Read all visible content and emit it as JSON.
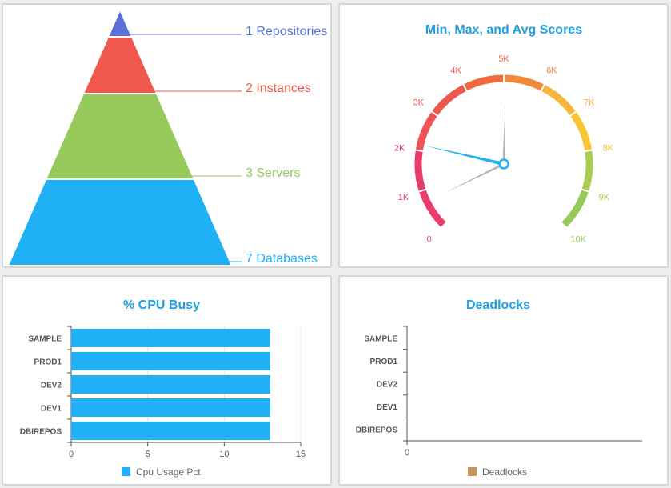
{
  "pyramid": {
    "levels": [
      {
        "count": 1,
        "label": "Repositories",
        "text": "1 Repositories",
        "color": "#5b6fd6"
      },
      {
        "count": 2,
        "label": "Instances",
        "text": "2 Instances",
        "color": "#f0584d"
      },
      {
        "count": 3,
        "label": "Servers",
        "text": "3 Servers",
        "color": "#97c95b"
      },
      {
        "count": 7,
        "label": "Databases",
        "text": "7 Databases",
        "color": "#1fb0f5"
      }
    ]
  },
  "gauge": {
    "title": "Min, Max, and Avg Scores",
    "min": 0,
    "max": 10000,
    "tick_labels": [
      "0",
      "1K",
      "2K",
      "3K",
      "4K",
      "5K",
      "6K",
      "7K",
      "8K",
      "9K",
      "10K"
    ],
    "tick_colors": [
      "#e93c6b",
      "#e93c6b",
      "#e93c6b",
      "#ef5257",
      "#f0584d",
      "#f06a40",
      "#f2883b",
      "#f7b73a",
      "#f9c534",
      "#a8cd4f",
      "#97c95b"
    ],
    "needles": [
      {
        "name": "avg",
        "value": 2150,
        "color": "#1fb0f5"
      },
      {
        "name": "min",
        "value": 700,
        "color": "#b3b3b3"
      },
      {
        "name": "max",
        "value": 5050,
        "color": "#b3b3b3"
      }
    ],
    "hub_color": "#1fb0f5"
  },
  "cpu": {
    "title": "% CPU Busy",
    "legend": "Cpu Usage Pct",
    "legend_color": "#1fb0f5",
    "chart_data": {
      "type": "bar",
      "orientation": "horizontal",
      "title": "% CPU Busy",
      "categories": [
        "SAMPLE",
        "PROD1",
        "DEV2",
        "DEV1",
        "DBIREPOS"
      ],
      "series": [
        {
          "name": "Cpu Usage Pct",
          "values": [
            13,
            13,
            13,
            13,
            13
          ]
        }
      ],
      "xlim": [
        0,
        15
      ],
      "ticks": [
        "0",
        "5",
        "10",
        "15"
      ],
      "color": "#1fb0f5"
    }
  },
  "deadlocks": {
    "title": "Deadlocks",
    "legend": "Deadlocks",
    "legend_color": "#c8965a",
    "chart_data": {
      "type": "bar",
      "orientation": "horizontal",
      "title": "Deadlocks",
      "categories": [
        "SAMPLE",
        "PROD1",
        "DEV2",
        "DEV1",
        "DBIREPOS"
      ],
      "series": [
        {
          "name": "Deadlocks",
          "values": [
            0,
            0,
            0,
            0,
            0
          ]
        }
      ],
      "ticks": [
        "0"
      ]
    }
  }
}
